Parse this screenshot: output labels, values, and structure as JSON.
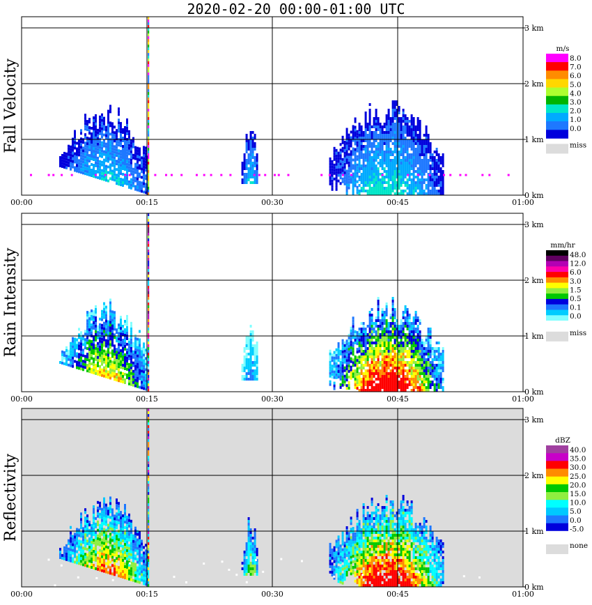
{
  "title": "2020-02-20   00:00-01:00 UTC",
  "chart_data": [
    {
      "type": "heatmap",
      "ylabel": "Fall Velocity",
      "x_ticks": [
        "00:00",
        "00:15",
        "00:30",
        "00:45",
        "01:00"
      ],
      "y_ticks": [
        "0 km",
        "1 km",
        "2 km",
        "3 km"
      ],
      "xlim": [
        "00:00",
        "01:00"
      ],
      "ylim_km": [
        0,
        3.2
      ],
      "grid": true,
      "background": "#ffffff",
      "legend": {
        "unit": "m/s",
        "labels": [
          "8.0",
          "7.0",
          "6.0",
          "5.0",
          "4.0",
          "3.0",
          "2.0",
          "1.0",
          "0.0"
        ],
        "colors": [
          "#ff00ff",
          "#ff0000",
          "#ff8c00",
          "#ffd700",
          "#adff2f",
          "#00b400",
          "#00e6c8",
          "#00aaff",
          "#1e78ff",
          "#0000dc"
        ],
        "miss_label": "miss",
        "miss_color": "#dcdcdc"
      }
    },
    {
      "type": "heatmap",
      "ylabel": "Rain Intensity",
      "x_ticks": [
        "00:00",
        "00:15",
        "00:30",
        "00:45",
        "01:00"
      ],
      "y_ticks": [
        "0 km",
        "1 km",
        "2 km",
        "3 km"
      ],
      "xlim": [
        "00:00",
        "01:00"
      ],
      "ylim_km": [
        0,
        3.2
      ],
      "grid": true,
      "background": "#ffffff",
      "legend": {
        "unit": "mm/hr",
        "labels": [
          "48.0",
          "12.0",
          "6.0",
          "3.0",
          "1.5",
          "0.5",
          "0.1",
          "0.0"
        ],
        "colors": [
          "#000000",
          "#600060",
          "#b400b4",
          "#ff00aa",
          "#ff0000",
          "#ff8c00",
          "#ffff00",
          "#90ee40",
          "#00c800",
          "#0000dc",
          "#1e78ff",
          "#00ccff",
          "#80ffff",
          "#ffffff"
        ],
        "miss_label": "miss",
        "miss_color": "#dcdcdc"
      }
    },
    {
      "type": "heatmap",
      "ylabel": "Reflectivity",
      "x_ticks": [
        "00:00",
        "00:15",
        "00:30",
        "00:45",
        "01:00"
      ],
      "y_ticks": [
        "0 km",
        "1 km",
        "2 km",
        "3 km"
      ],
      "xlim": [
        "00:00",
        "01:00"
      ],
      "ylim_km": [
        0,
        3.2
      ],
      "grid": true,
      "background": "#dcdcdc",
      "legend": {
        "unit": "dBZ",
        "labels": [
          "40.0",
          "35.0",
          "30.0",
          "25.0",
          "20.0",
          "15.0",
          "10.0",
          "5.0",
          "0.0",
          "-5.0"
        ],
        "colors": [
          "#a040a0",
          "#c800c8",
          "#ff0000",
          "#ff8c00",
          "#ffff00",
          "#00c800",
          "#90ee40",
          "#00ffff",
          "#00c8ff",
          "#1e78ff",
          "#0000dc",
          "#ffffff"
        ],
        "miss_label": "none",
        "miss_color": "#dcdcdc"
      }
    }
  ]
}
